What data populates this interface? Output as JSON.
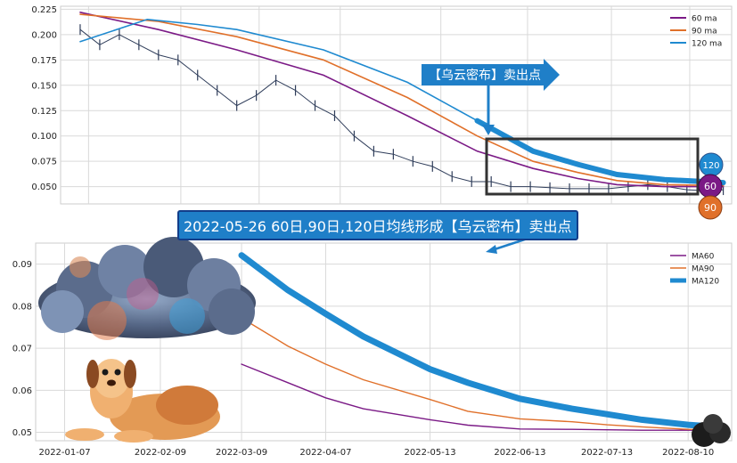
{
  "annotation": {
    "cloud_label": "【乌云密布】卖出点",
    "headline": "2022-05-26 60日,90日,120日均线形成【乌云密布】卖出点",
    "badges": [
      "120",
      "60",
      "90"
    ]
  },
  "colors": {
    "ma60": "#7b1a86",
    "ma90": "#e0702a",
    "ma120": "#1f8ad0",
    "price": "#2f3d5a",
    "grid": "#d9d9d9",
    "arrow": "#1f7fc8",
    "box": "#333333"
  },
  "chart_data": [
    {
      "type": "line",
      "panel": "top",
      "xlim": [
        "2021-12-28",
        "2022-08-25"
      ],
      "ylim": [
        0.033,
        0.228
      ],
      "y_ticks": [
        "0.050",
        "0.075",
        "0.100",
        "0.125",
        "0.150",
        "0.175",
        "0.200",
        "0.225"
      ],
      "y_tick_values": [
        0.05,
        0.075,
        0.1,
        0.125,
        0.15,
        0.175,
        0.2,
        0.225
      ],
      "legend": [
        "60 ma",
        "90 ma",
        "120 ma"
      ],
      "legend_position": "top-right",
      "grid": true,
      "price_series": {
        "name": "",
        "x": [
          "2022-01-04",
          "2022-01-11",
          "2022-01-18",
          "2022-01-25",
          "2022-02-01",
          "2022-02-08",
          "2022-02-15",
          "2022-02-22",
          "2022-03-01",
          "2022-03-08",
          "2022-03-15",
          "2022-03-22",
          "2022-03-29",
          "2022-04-05",
          "2022-04-12",
          "2022-04-19",
          "2022-04-26",
          "2022-05-03",
          "2022-05-10",
          "2022-05-17",
          "2022-05-24",
          "2022-05-31",
          "2022-06-07",
          "2022-06-14",
          "2022-06-21",
          "2022-06-28",
          "2022-07-05",
          "2022-07-12",
          "2022-07-19",
          "2022-07-26",
          "2022-08-02",
          "2022-08-09",
          "2022-08-16",
          "2022-08-22"
        ],
        "values": [
          0.205,
          0.19,
          0.2,
          0.19,
          0.18,
          0.175,
          0.16,
          0.145,
          0.13,
          0.14,
          0.155,
          0.145,
          0.13,
          0.12,
          0.1,
          0.085,
          0.082,
          0.075,
          0.07,
          0.06,
          0.055,
          0.055,
          0.05,
          0.05,
          0.049,
          0.048,
          0.048,
          0.048,
          0.05,
          0.052,
          0.05,
          0.047,
          0.046,
          0.047
        ]
      },
      "series": [
        {
          "name": "60 ma",
          "x": [
            "2022-01-04",
            "2022-02-01",
            "2022-03-01",
            "2022-04-01",
            "2022-05-01",
            "2022-05-26",
            "2022-06-15",
            "2022-07-01",
            "2022-07-15",
            "2022-08-01",
            "2022-08-22"
          ],
          "values": [
            0.222,
            0.205,
            0.185,
            0.16,
            0.12,
            0.085,
            0.068,
            0.058,
            0.052,
            0.05,
            0.05
          ]
        },
        {
          "name": "90 ma",
          "x": [
            "2022-01-04",
            "2022-02-01",
            "2022-03-01",
            "2022-04-01",
            "2022-05-01",
            "2022-05-26",
            "2022-06-15",
            "2022-07-01",
            "2022-07-15",
            "2022-08-01",
            "2022-08-22"
          ],
          "values": [
            0.22,
            0.213,
            0.198,
            0.175,
            0.138,
            0.1,
            0.075,
            0.064,
            0.056,
            0.052,
            0.051
          ]
        },
        {
          "name": "120 ma",
          "x": [
            "2022-01-04",
            "2022-01-28",
            "2022-02-15",
            "2022-03-01",
            "2022-04-01",
            "2022-05-01",
            "2022-05-26",
            "2022-06-15",
            "2022-07-01",
            "2022-07-15",
            "2022-08-01",
            "2022-08-22"
          ],
          "values": [
            0.193,
            0.215,
            0.21,
            0.205,
            0.185,
            0.153,
            0.115,
            0.085,
            0.072,
            0.062,
            0.057,
            0.054
          ]
        }
      ]
    },
    {
      "type": "line",
      "panel": "bottom",
      "xlim": [
        "2021-12-28",
        "2022-08-25"
      ],
      "ylim": [
        0.048,
        0.095
      ],
      "x_ticks": [
        "2022-01-07",
        "2022-02-09",
        "2022-03-09",
        "2022-04-07",
        "2022-05-13",
        "2022-06-13",
        "2022-07-13",
        "2022-08-10"
      ],
      "y_ticks": [
        "0.05",
        "0.06",
        "0.07",
        "0.08",
        "0.09"
      ],
      "y_tick_values": [
        0.05,
        0.06,
        0.07,
        0.08,
        0.09
      ],
      "legend": [
        "MA60",
        "MA90",
        "MA120"
      ],
      "legend_position": "top-right",
      "grid": true,
      "series": [
        {
          "name": "MA60",
          "x": [
            "2022-03-09",
            "2022-03-25",
            "2022-04-07",
            "2022-04-20",
            "2022-05-13",
            "2022-05-26",
            "2022-06-13",
            "2022-07-01",
            "2022-07-13",
            "2022-07-25",
            "2022-08-10",
            "2022-08-22"
          ],
          "values": [
            0.0662,
            0.0618,
            0.0582,
            0.0556,
            0.053,
            0.0517,
            0.0508,
            0.0507,
            0.0506,
            0.0505,
            0.0505,
            0.0505
          ]
        },
        {
          "name": "MA90",
          "x": [
            "2022-03-09",
            "2022-03-25",
            "2022-04-07",
            "2022-04-20",
            "2022-05-13",
            "2022-05-26",
            "2022-06-13",
            "2022-07-01",
            "2022-07-13",
            "2022-07-25",
            "2022-08-10",
            "2022-08-22"
          ],
          "values": [
            0.0772,
            0.0705,
            0.0662,
            0.0625,
            0.0578,
            0.055,
            0.0532,
            0.0525,
            0.0518,
            0.0513,
            0.0507,
            0.0505
          ]
        },
        {
          "name": "MA120",
          "x": [
            "2022-03-09",
            "2022-03-25",
            "2022-04-07",
            "2022-04-20",
            "2022-05-13",
            "2022-05-26",
            "2022-06-13",
            "2022-07-01",
            "2022-07-13",
            "2022-07-25",
            "2022-08-10",
            "2022-08-22"
          ],
          "values": [
            0.0921,
            0.0838,
            0.0782,
            0.0728,
            0.065,
            0.0618,
            0.058,
            0.0556,
            0.0543,
            0.053,
            0.0518,
            0.0512
          ]
        }
      ]
    }
  ]
}
